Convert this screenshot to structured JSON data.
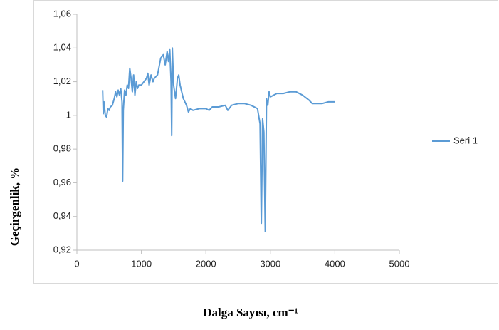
{
  "chart_data": {
    "type": "line",
    "x_label": "Dalga Sayısı, cm⁻¹",
    "y_label": "Geçirgenlik, %",
    "x": [
      400,
      410,
      420,
      440,
      460,
      480,
      500,
      520,
      550,
      580,
      600,
      620,
      640,
      660,
      680,
      700,
      710,
      720,
      740,
      760,
      780,
      800,
      820,
      840,
      860,
      880,
      900,
      920,
      940,
      960,
      1000,
      1040,
      1080,
      1100,
      1120,
      1150,
      1180,
      1200,
      1250,
      1300,
      1340,
      1370,
      1400,
      1420,
      1440,
      1460,
      1470,
      1480,
      1500,
      1530,
      1560,
      1580,
      1600,
      1650,
      1700,
      1730,
      1760,
      1800,
      1900,
      2000,
      2050,
      2100,
      2200,
      2300,
      2340,
      2400,
      2500,
      2600,
      2700,
      2800,
      2840,
      2860,
      2880,
      2900,
      2920,
      2940,
      2960,
      2980,
      3000,
      3100,
      3200,
      3300,
      3400,
      3500,
      3600,
      3650,
      3700,
      3800,
      3900,
      4000
    ],
    "series": [
      {
        "name": "Seri 1",
        "color": "#5b9bd5",
        "values": [
          1.015,
          1.001,
          1.008,
          1.0,
          0.999,
          1.004,
          1.003,
          1.005,
          1.006,
          1.01,
          1.014,
          1.011,
          1.015,
          1.012,
          1.016,
          1.008,
          0.961,
          1.003,
          1.015,
          1.012,
          1.018,
          1.016,
          1.028,
          1.022,
          1.014,
          1.024,
          1.012,
          1.02,
          1.016,
          1.018,
          1.018,
          1.02,
          1.022,
          1.025,
          1.018,
          1.024,
          1.02,
          1.022,
          1.024,
          1.034,
          1.036,
          1.03,
          1.038,
          1.032,
          1.039,
          1.02,
          0.988,
          1.04,
          1.018,
          1.01,
          1.022,
          1.024,
          1.018,
          1.01,
          1.006,
          1.002,
          1.004,
          1.003,
          1.004,
          1.004,
          1.003,
          1.005,
          1.005,
          1.006,
          1.003,
          1.006,
          1.007,
          1.007,
          1.006,
          1.004,
          0.995,
          0.936,
          0.998,
          0.99,
          0.931,
          1.01,
          1.006,
          1.014,
          1.011,
          1.013,
          1.013,
          1.014,
          1.014,
          1.012,
          1.009,
          1.007,
          1.007,
          1.007,
          1.008,
          1.008
        ]
      }
    ],
    "xlim": [
      0,
      5000
    ],
    "xticks": [
      0,
      1000,
      2000,
      3000,
      4000,
      5000
    ],
    "ylim": [
      0.92,
      1.06
    ],
    "yticks": [
      {
        "value": 0.92,
        "label": "0,92"
      },
      {
        "value": 0.94,
        "label": "0,94"
      },
      {
        "value": 0.96,
        "label": "0,96"
      },
      {
        "value": 0.98,
        "label": "0,98"
      },
      1,
      {
        "value": 1.02,
        "label": "1,02"
      },
      {
        "value": 1.04,
        "label": "1,04"
      },
      {
        "value": 1.06,
        "label": "1,06"
      }
    ],
    "grid": false,
    "legend": "right"
  }
}
